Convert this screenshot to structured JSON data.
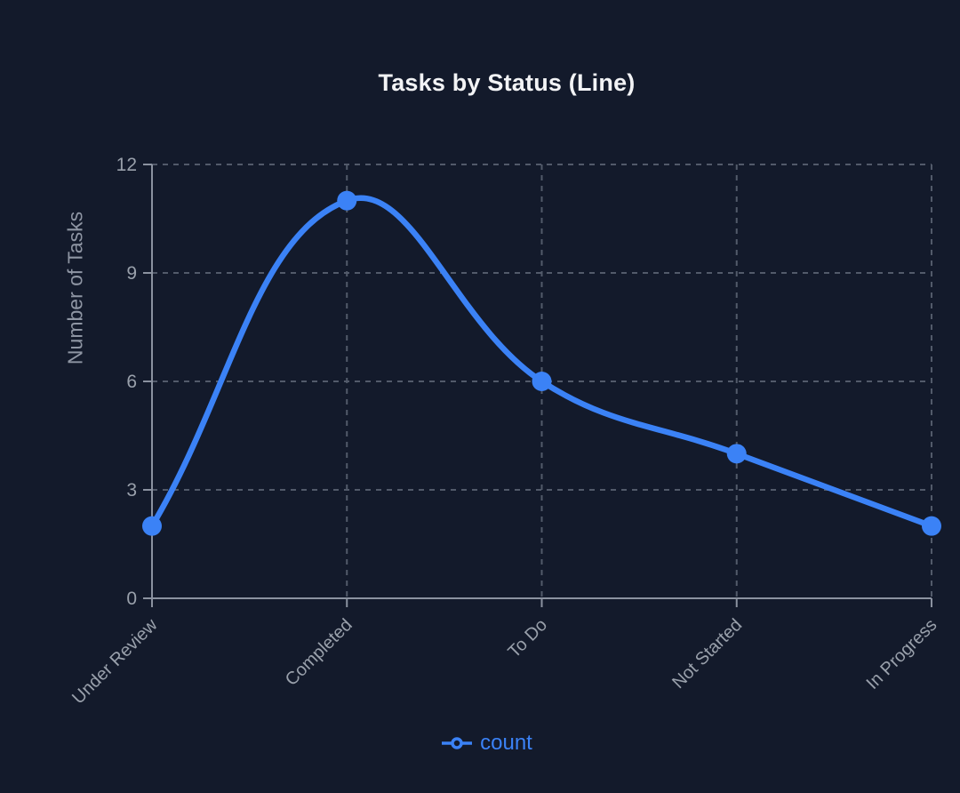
{
  "chart_data": {
    "type": "line",
    "title": "Tasks by Status (Line)",
    "categories": [
      "Under Review",
      "Completed",
      "To Do",
      "Not Started",
      "In Progress"
    ],
    "series": [
      {
        "name": "count",
        "values": [
          2,
          11,
          6,
          4,
          2
        ]
      }
    ],
    "xlabel": "",
    "ylabel": "Number of Tasks",
    "ylim": [
      0,
      12
    ],
    "yticks": [
      0,
      3,
      6,
      9,
      12
    ],
    "grid": "dashed",
    "legend_position": "bottom",
    "curve": "smooth",
    "colors": {
      "line": "#3b82f6",
      "point": "#3b82f6",
      "grid": "#525a6a",
      "axis": "#8b92a0",
      "tick_label": "#99a0ab",
      "axis_title": "#8e95a3",
      "title": "#f2f3f5",
      "legend_text": "#3b82f6",
      "background": "#131a2b"
    }
  }
}
